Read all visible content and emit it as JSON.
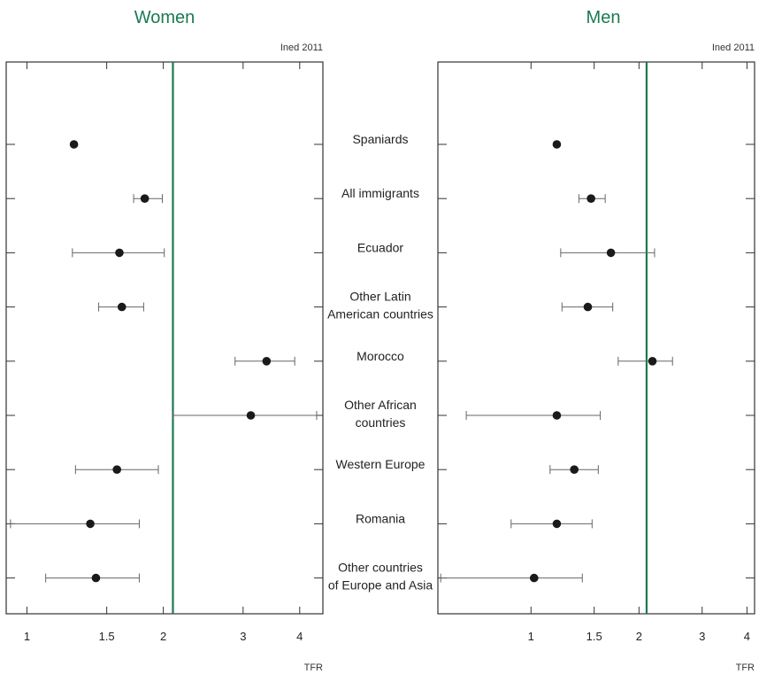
{
  "chart_data": {
    "type": "scatter",
    "x_scale": "log",
    "grid": false,
    "ylabel": "",
    "categories": [
      "Spaniards",
      "All immigrants",
      "Ecuador",
      "Other Latin|American countries",
      "Morocco",
      "Other African|countries",
      "Western Europe",
      "Romania",
      "Other countries|of Europe and Asia"
    ],
    "reference_line": {
      "value": 2.1,
      "color": "#1a7a50"
    },
    "colors": {
      "title": "#1a7a50",
      "axis": "#333333",
      "point": "#1a1a1a",
      "error_bar": "#666666"
    },
    "panels": [
      {
        "title": "Women",
        "source_note": "Ined 2011",
        "xlabel": "TFR",
        "xlim": [
          0.9,
          4.5
        ],
        "x_ticks": [
          1,
          1.5,
          2,
          3,
          4
        ],
        "tick_labels": [
          "1",
          "1.5",
          "2",
          "3",
          "4"
        ],
        "points": [
          {
            "category": "Spaniards",
            "value": 1.27,
            "low": null,
            "high": null
          },
          {
            "category": "All immigrants",
            "value": 1.82,
            "low": 1.72,
            "high": 1.99
          },
          {
            "category": "Ecuador",
            "value": 1.6,
            "low": 1.26,
            "high": 2.01
          },
          {
            "category": "Other Latin|American countries",
            "value": 1.62,
            "low": 1.44,
            "high": 1.81
          },
          {
            "category": "Morocco",
            "value": 3.38,
            "low": 2.88,
            "high": 3.9
          },
          {
            "category": "Other African|countries",
            "value": 3.12,
            "low": 2.1,
            "high": 4.36
          },
          {
            "category": "Western Europe",
            "value": 1.58,
            "low": 1.28,
            "high": 1.95
          },
          {
            "category": "Romania",
            "value": 1.38,
            "low": 0.92,
            "high": 1.77
          },
          {
            "category": "Other countries|of Europe and Asia",
            "value": 1.42,
            "low": 1.1,
            "high": 1.77
          }
        ]
      },
      {
        "title": "Men",
        "source_note": "Ined 2011",
        "xlabel": "TFR",
        "xlim": [
          0.55,
          4.2
        ],
        "x_ticks": [
          1,
          1.5,
          2,
          3,
          4
        ],
        "tick_labels": [
          "1",
          "1.5",
          "2",
          "3",
          "4"
        ],
        "points": [
          {
            "category": "Spaniards",
            "value": 1.18,
            "low": null,
            "high": null
          },
          {
            "category": "All immigrants",
            "value": 1.47,
            "low": 1.36,
            "high": 1.61
          },
          {
            "category": "Ecuador",
            "value": 1.67,
            "low": 1.21,
            "high": 2.21
          },
          {
            "category": "Other Latin|American countries",
            "value": 1.44,
            "low": 1.22,
            "high": 1.69
          },
          {
            "category": "Morocco",
            "value": 2.18,
            "low": 1.75,
            "high": 2.48
          },
          {
            "category": "Other African|countries",
            "value": 1.18,
            "low": 0.66,
            "high": 1.56
          },
          {
            "category": "Western Europe",
            "value": 1.32,
            "low": 1.13,
            "high": 1.54
          },
          {
            "category": "Romania",
            "value": 1.18,
            "low": 0.88,
            "high": 1.48
          },
          {
            "category": "Other countries|of Europe and Asia",
            "value": 1.02,
            "low": 0.56,
            "high": 1.39
          }
        ]
      }
    ]
  }
}
